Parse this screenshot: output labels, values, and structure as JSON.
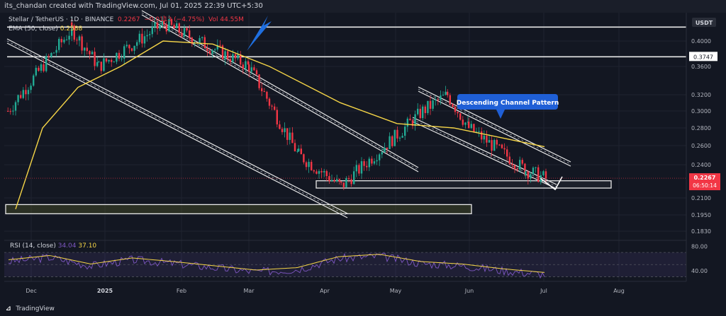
{
  "header": {
    "attribution": "its_chandan created with TradingView.com, Jul 01, 2025 22:39 UTC+5:30"
  },
  "legend": {
    "symbol": "Stellar / TetherUS · 1D · BINANCE",
    "ohlc_close": "0.2267",
    "change": "−0.0113 (−4.75%)",
    "volume": "Vol 44.55M",
    "ma_label": "EMA (50, close)",
    "ma_value": "0.2588",
    "rsi_label": "RSI (14, close)",
    "rsi_value": "34.04",
    "rsi_ma_value": "37.10"
  },
  "annotation": {
    "text": "Descending Channel Pattern"
  },
  "price_badges": {
    "resistance": "0.3747",
    "current_price": "0.2267",
    "countdown": "06:50:14"
  },
  "footer": {
    "brand": "TradingView"
  },
  "chart_data": {
    "type": "candlestick",
    "currency": "USDT",
    "y_ticks": [
      "0.4000",
      "0.3600",
      "0.3200",
      "0.3000",
      "0.2800",
      "0.2600",
      "0.2400",
      "0.2100",
      "0.1950",
      "0.1830"
    ],
    "x_ticks": [
      "Dec",
      "2025",
      "Feb",
      "Mar",
      "Apr",
      "May",
      "Jun",
      "Jul",
      "Aug"
    ],
    "rsi_ticks": [
      "80.00",
      "40.00"
    ],
    "ylim": [
      0.18,
      0.43
    ],
    "horizontal_levels": [
      0.43,
      0.3747
    ],
    "support_zones": [
      [
        0.2185,
        0.225
      ],
      [
        0.196,
        0.204
      ]
    ],
    "key_points": [
      {
        "x": "late Nov",
        "close": 0.3
      },
      {
        "x": "early Dec",
        "close": 0.42
      },
      {
        "x": "mid Jan",
        "close": 0.36
      },
      {
        "x": "late Jan",
        "close": 0.43
      },
      {
        "x": "early Mar",
        "close": 0.36
      },
      {
        "x": "mid Mar",
        "close": 0.25
      },
      {
        "x": "early Apr",
        "close": 0.22
      },
      {
        "x": "early May",
        "close": 0.3
      },
      {
        "x": "mid May",
        "close": 0.32
      },
      {
        "x": "early Jun",
        "close": 0.28
      },
      {
        "x": "late Jun",
        "close": 0.235
      },
      {
        "x": "Jul 01",
        "close": 0.2267
      }
    ],
    "ema50": [
      0.2,
      0.28,
      0.33,
      0.36,
      0.4,
      0.395,
      0.36,
      0.31,
      0.285,
      0.28,
      0.27,
      0.2588
    ],
    "rsi_points": [
      55,
      62,
      48,
      58,
      52,
      45,
      38,
      42,
      60,
      64,
      52,
      48,
      40,
      34.04
    ]
  }
}
